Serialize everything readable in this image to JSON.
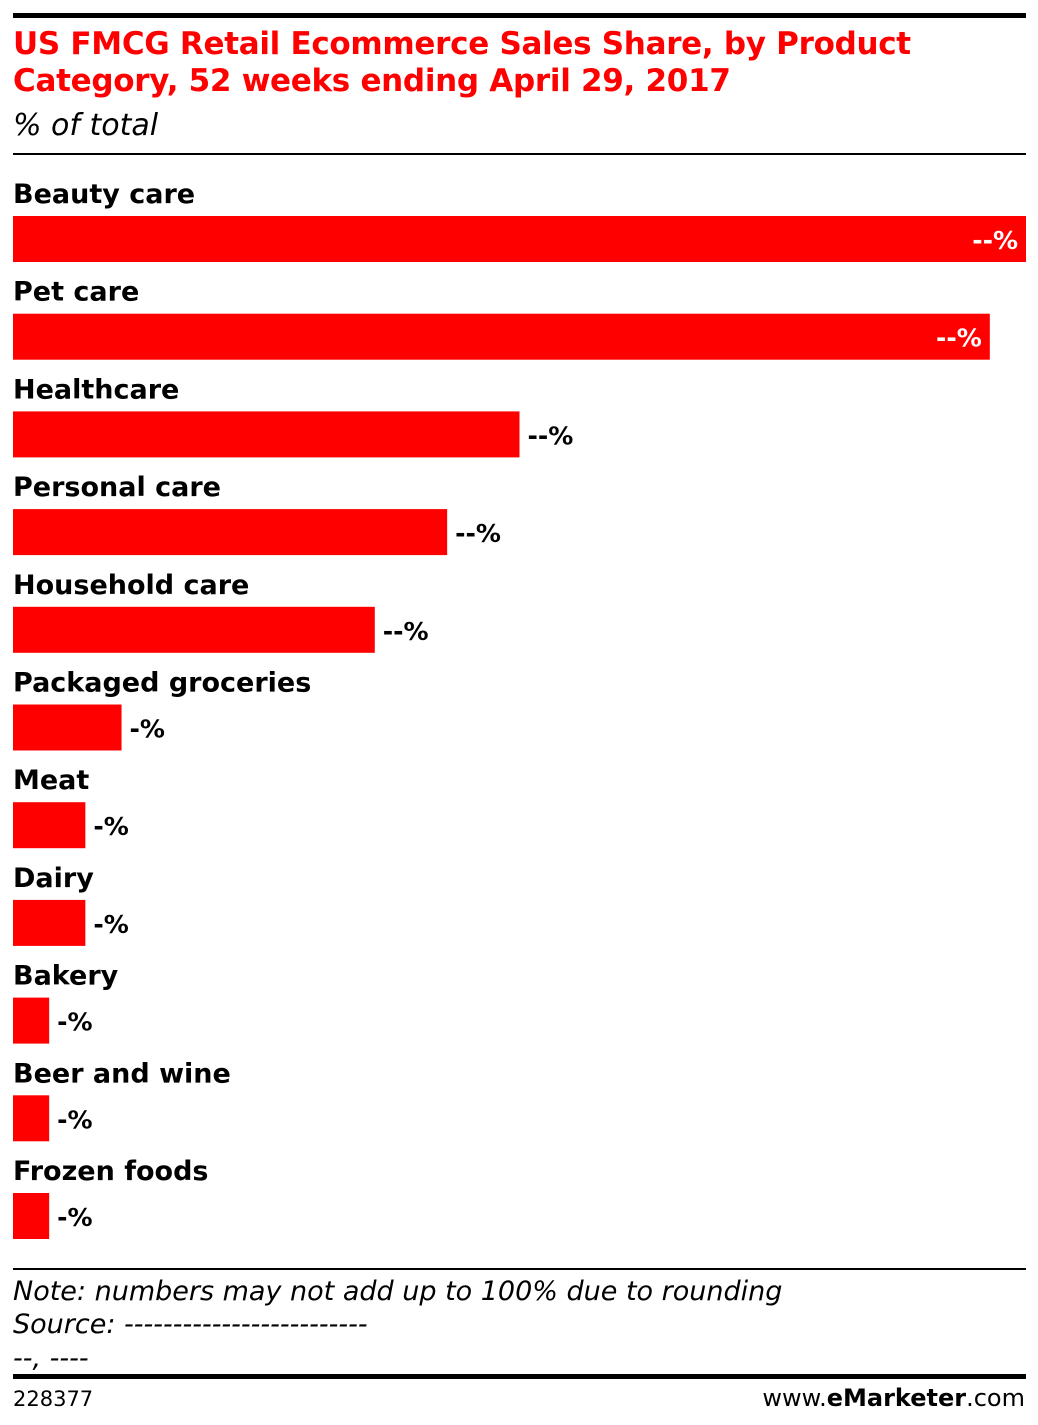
{
  "header": {
    "title": "US FMCG Retail Ecommerce Sales Share, by Product Category, 52 weeks ending April 29, 2017",
    "subtitle": "% of total"
  },
  "chart_data": {
    "type": "bar",
    "orientation": "horizontal",
    "categories": [
      "Beauty care",
      "Pet care",
      "Healthcare",
      "Personal care",
      "Household care",
      "Packaged groceries",
      "Meat",
      "Dairy",
      "Bakery",
      "Beer and wine",
      "Frozen foods"
    ],
    "values": [
      28.0,
      27.0,
      14.0,
      12.0,
      10.0,
      3.0,
      2.0,
      2.0,
      1.0,
      1.0,
      1.0
    ],
    "data_labels": [
      "--%",
      "--%",
      "--%",
      "--%",
      "--%",
      "-%",
      "-%",
      "-%",
      "-%",
      "-%",
      "-%"
    ],
    "label_inside": [
      true,
      true,
      false,
      false,
      false,
      false,
      false,
      false,
      false,
      false,
      false
    ],
    "bar_color": "#ff0000",
    "grid": false
  },
  "footer": {
    "note": "Note: numbers may not add up to 100% due to rounding",
    "source": "Source: -------------------------",
    "source_line2": "--, ----",
    "chart_id": "228377",
    "brand_prefix": "www.",
    "brand_name": "eMarketer",
    "brand_suffix": ".com"
  },
  "colors": {
    "accent": "#ff0000",
    "text": "#000000"
  }
}
